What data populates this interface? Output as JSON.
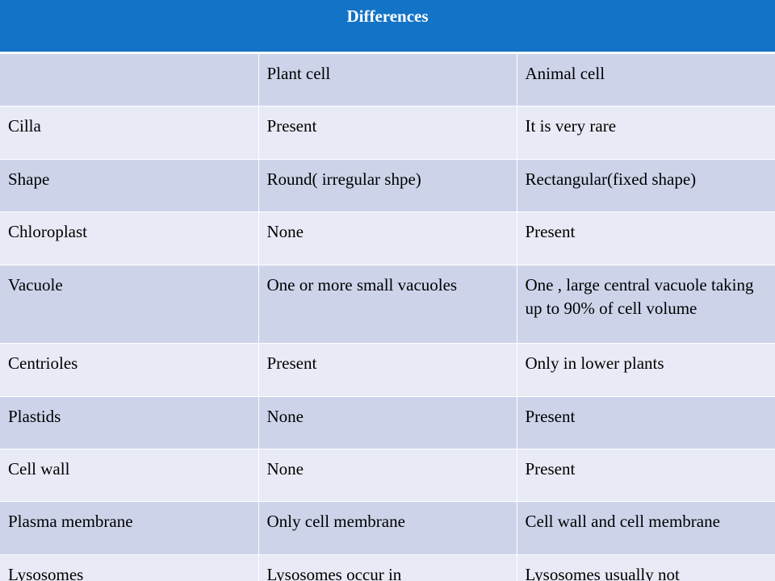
{
  "table": {
    "title": "Differences",
    "columns": [
      "",
      "Plant cell",
      "Animal cell"
    ],
    "rows": [
      [
        "Cilla",
        "Present",
        "It is very rare"
      ],
      [
        "Shape",
        "Round( irregular shpe)",
        "Rectangular(fixed shape)"
      ],
      [
        "Chloroplast",
        "None",
        "Present"
      ],
      [
        "Vacuole",
        "One or more small vacuoles",
        "One , large central vacuole taking up to 90% of cell volume"
      ],
      [
        "Centrioles",
        "Present",
        "Only in lower plants"
      ],
      [
        "Plastids",
        "None",
        "Present"
      ],
      [
        "Cell wall",
        "None",
        "Present"
      ],
      [
        "Plasma membrane",
        "Only cell membrane",
        "Cell wall and cell membrane"
      ],
      [
        "Lysosomes",
        "Lysosomes occur in",
        "Lysosomes usually not"
      ]
    ]
  },
  "colors": {
    "header_bg": "#1373c6",
    "band_dark": "#cdd4ea",
    "band_light": "#e8ebf5"
  }
}
